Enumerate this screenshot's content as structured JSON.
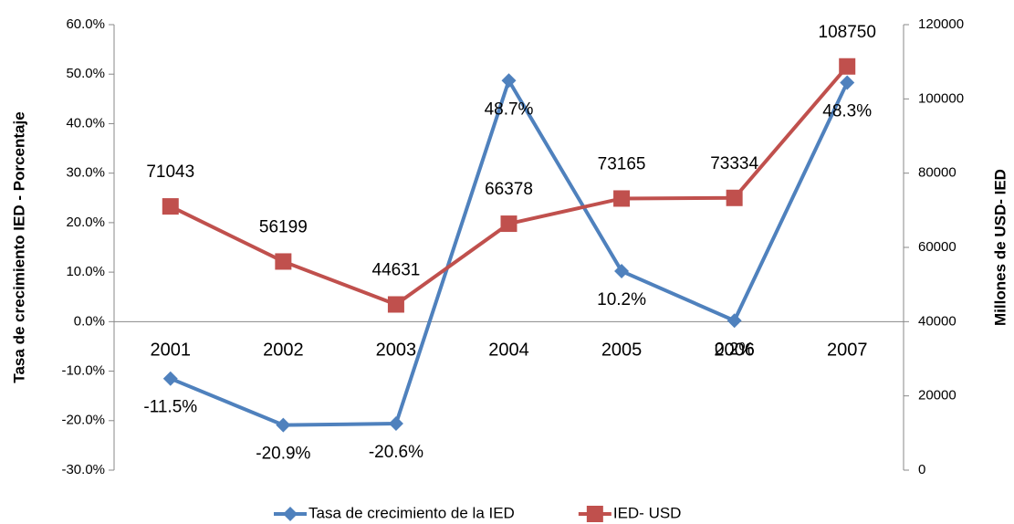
{
  "chart_data": {
    "type": "line",
    "categories": [
      "2001",
      "2002",
      "2003",
      "2004",
      "2005",
      "2006",
      "2007"
    ],
    "ylabel": "Tasa de crecimiento IED - Porcentaje",
    "y2label": "Millones de USD- IED",
    "ylim": [
      -30,
      60
    ],
    "yticks": [
      {
        "value": -30,
        "label": "-30.0%"
      },
      {
        "value": -20,
        "label": "-20.0%"
      },
      {
        "value": -10,
        "label": "-10.0%"
      },
      {
        "value": 0,
        "label": "0.0%"
      },
      {
        "value": 10,
        "label": "10.0%"
      },
      {
        "value": 20,
        "label": "20.0%"
      },
      {
        "value": 30,
        "label": "30.0%"
      },
      {
        "value": 40,
        "label": "40.0%"
      },
      {
        "value": 50,
        "label": "50.0%"
      },
      {
        "value": 60,
        "label": "60.0%"
      }
    ],
    "y2lim": [
      0,
      120000
    ],
    "y2ticks": [
      0,
      20000,
      40000,
      60000,
      80000,
      100000,
      120000
    ],
    "legend": "bottom",
    "series": [
      {
        "name": "Tasa de crecimiento de la IED",
        "color": "#4f81bd",
        "marker": "diamond",
        "values": [
          -11.5,
          -20.9,
          -20.6,
          48.7,
          10.2,
          0.2,
          48.3
        ],
        "value_labels": [
          "-11.5%",
          "-20.9%",
          "-20.6%",
          "48.7%",
          "10.2%",
          "0.2%",
          "48.3%"
        ]
      },
      {
        "name": "IED- USD",
        "color": "#c0504d",
        "marker": "square",
        "axis": "y2",
        "values": [
          71043,
          56199,
          44631,
          66378,
          73165,
          73334,
          108750
        ]
      }
    ]
  }
}
